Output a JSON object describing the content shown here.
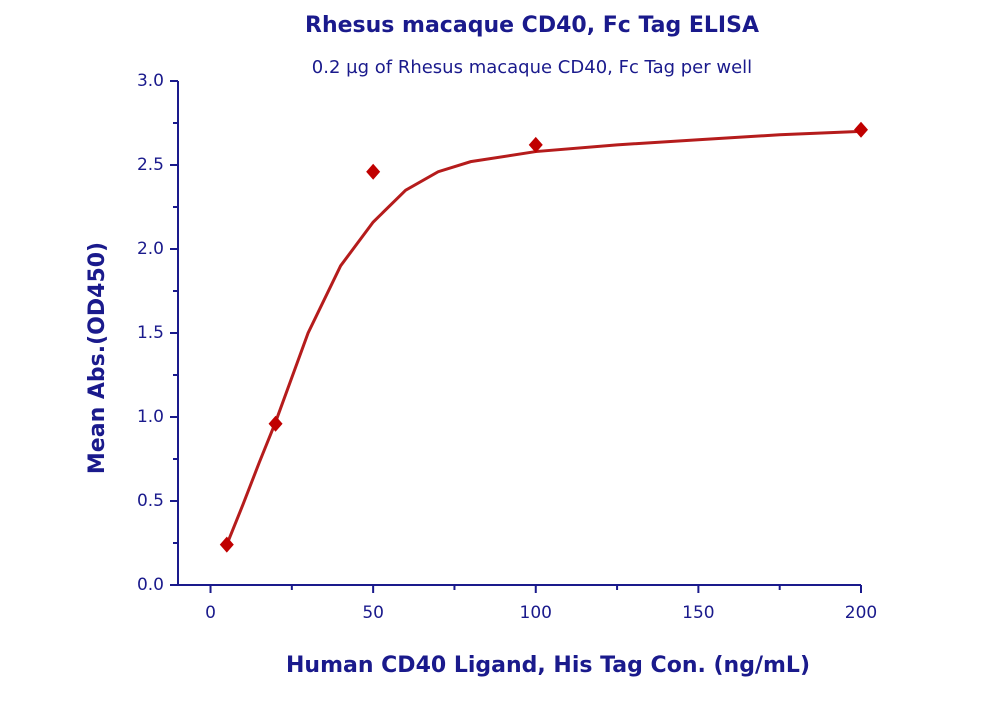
{
  "chart_data": {
    "type": "scatter",
    "title": "Rhesus macaque CD40, Fc Tag ELISA",
    "subtitle": "0.2 µg of Rhesus macaque CD40, Fc Tag per well",
    "x_label": "Human CD40 Ligand, His Tag Con. (ng/mL)",
    "y_label": "Mean Abs.(OD450)",
    "x": [
      5,
      20,
      50,
      100,
      200
    ],
    "series": [
      {
        "color": "#c00000",
        "values": [
          0.24,
          0.96,
          2.46,
          2.62,
          2.71
        ]
      }
    ],
    "fit": {
      "color": "#b51c1c",
      "x": [
        5,
        10,
        15,
        20,
        30,
        40,
        50,
        60,
        70,
        80,
        100,
        125,
        150,
        175,
        200
      ],
      "values": [
        0.24,
        0.48,
        0.73,
        0.97,
        1.5,
        1.9,
        2.16,
        2.35,
        2.46,
        2.52,
        2.58,
        2.62,
        2.65,
        2.68,
        2.7
      ]
    },
    "xlim": [
      -10,
      200
    ],
    "ylim": [
      0,
      3
    ],
    "xticks": [
      0,
      50,
      100,
      150,
      200
    ],
    "xminor_ticks": [
      25,
      75,
      125,
      175
    ],
    "yticks": [
      {
        "value": 0,
        "label": "0.0"
      },
      0.5,
      {
        "value": 1,
        "label": "1.0"
      },
      1.5,
      {
        "value": 2,
        "label": "2.0"
      },
      2.5,
      {
        "value": 3,
        "label": "3.0"
      }
    ],
    "yminor_ticks": [
      0.25,
      0.75,
      1.25,
      1.75,
      2.25,
      2.75
    ],
    "text_color": "#1a1a8c"
  }
}
